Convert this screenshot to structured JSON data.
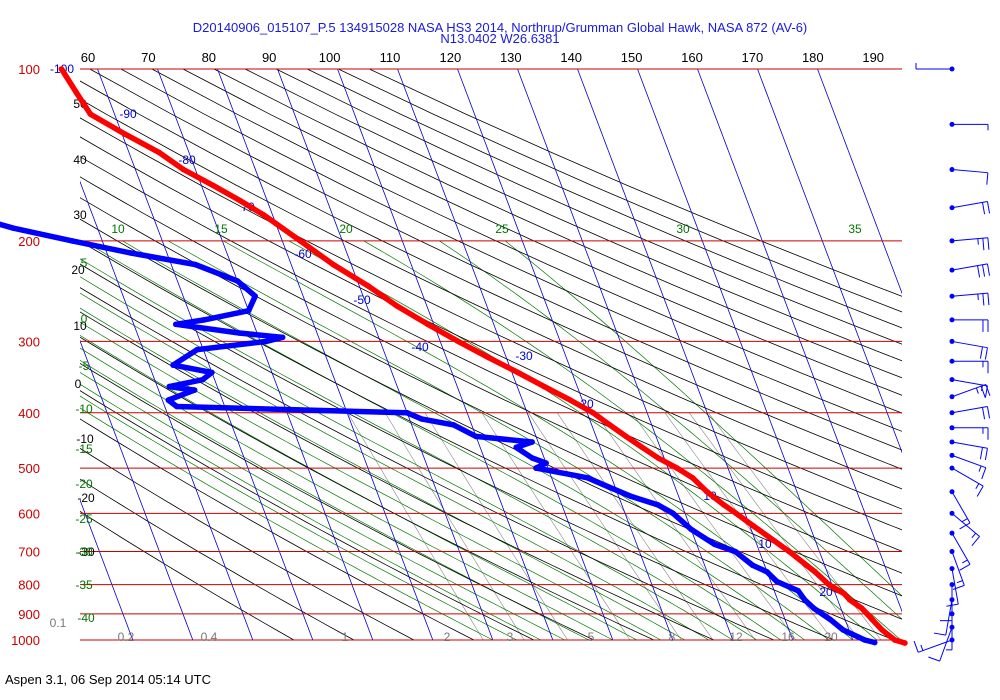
{
  "header": {
    "line1": "D20140906_015107_P.5 134915028 NASA HS3 2014, Northrup/Grumman Global Hawk, NASA 872 (AV-6)",
    "line2": "N13.0402 W26.6381"
  },
  "footer": {
    "text": "Aspen 3.1, 06 Sep 2014  05:14 UTC"
  },
  "chart_data": {
    "type": "line",
    "title": "D20140906_015107_P.5 134915028 NASA HS3 2014, Northrup/Grumman Global Hawk, NASA 872 (AV-6)",
    "subtitle": "N13.0402 W26.6381",
    "x_axis": {
      "ticks": [
        60,
        70,
        80,
        90,
        100,
        110,
        120,
        130,
        140,
        150,
        160,
        170,
        180,
        190
      ],
      "position": "top"
    },
    "y_axis": {
      "scale": "log",
      "ticks": [
        100,
        200,
        300,
        400,
        500,
        600,
        700,
        800,
        900,
        1000
      ],
      "range": [
        100,
        1000
      ]
    },
    "isotherm_labels": [
      "-100",
      "-90",
      "-80",
      "70",
      "-60",
      "-50",
      "-40",
      "-30",
      "-20",
      "10",
      "10",
      "20"
    ],
    "dry_adiabat_labels": [
      "50",
      "40",
      "30",
      "20",
      "10",
      "0",
      "-10",
      "-20",
      "-30"
    ],
    "moist_adiabat_labels_green": [
      "10",
      "15",
      "20",
      "25",
      "30",
      "35",
      "5",
      "0",
      "-5",
      "-10",
      "-15",
      "-20",
      "-25",
      "-30",
      "-35",
      "-40"
    ],
    "mixing_ratio_labels": [
      "0.1",
      "0.2",
      "0.4",
      "1",
      "2",
      "3",
      "5",
      "8",
      "12",
      "16",
      "20"
    ],
    "colors": {
      "temperature": "#ff0000",
      "dewpoint": "#0000ff",
      "isobar": "#cc0000",
      "isotherm": "#0000cc",
      "dry_adiabat": "#000000",
      "moist_adiabat": "#007700",
      "mixing_ratio": "#888888",
      "text_blue": "#1a1adc"
    },
    "series": [
      {
        "name": "Temperature",
        "color": "#ff0000",
        "points": [
          [
            100,
            -76
          ],
          [
            110,
            -75
          ],
          [
            120,
            -74
          ],
          [
            130,
            -69.5
          ],
          [
            140,
            -65
          ],
          [
            150,
            -62
          ],
          [
            160,
            -58
          ],
          [
            170,
            -54.5
          ],
          [
            180,
            -51.5
          ],
          [
            200,
            -47
          ],
          [
            220,
            -43
          ],
          [
            240,
            -38.5
          ],
          [
            260,
            -35
          ],
          [
            280,
            -31
          ],
          [
            300,
            -27
          ],
          [
            320,
            -23
          ],
          [
            340,
            -19
          ],
          [
            360,
            -15.5
          ],
          [
            380,
            -12
          ],
          [
            400,
            -9
          ],
          [
            420,
            -7
          ],
          [
            440,
            -5
          ],
          [
            460,
            -3
          ],
          [
            480,
            -1
          ],
          [
            500,
            1.5
          ],
          [
            520,
            3.5
          ],
          [
            550,
            5
          ],
          [
            580,
            7
          ],
          [
            600,
            8.5
          ],
          [
            630,
            10.5
          ],
          [
            660,
            12.5
          ],
          [
            700,
            15
          ],
          [
            740,
            17
          ],
          [
            760,
            18
          ],
          [
            800,
            19.5
          ],
          [
            830,
            21.5
          ],
          [
            850,
            22
          ],
          [
            880,
            23.5
          ],
          [
            920,
            24.5
          ],
          [
            960,
            25.5
          ],
          [
            1000,
            27
          ],
          [
            1012,
            28.5
          ]
        ]
      },
      {
        "name": "Dewpoint",
        "color": "#0000ff",
        "points": [
          [
            158,
            -120
          ],
          [
            165,
            -114
          ],
          [
            172,
            -107
          ],
          [
            180,
            -101
          ],
          [
            190,
            -94
          ],
          [
            200,
            -85
          ],
          [
            210,
            -76
          ],
          [
            220,
            -66
          ],
          [
            235,
            -60
          ],
          [
            250,
            -58
          ],
          [
            265,
            -60
          ],
          [
            275,
            -68
          ],
          [
            280,
            -73
          ],
          [
            290,
            -63
          ],
          [
            295,
            -56
          ],
          [
            300,
            -59
          ],
          [
            310,
            -71
          ],
          [
            330,
            -76
          ],
          [
            340,
            -70
          ],
          [
            350,
            -72
          ],
          [
            360,
            -78
          ],
          [
            365,
            -74
          ],
          [
            380,
            -79
          ],
          [
            390,
            -78
          ],
          [
            400,
            -40
          ],
          [
            410,
            -38
          ],
          [
            420,
            -33
          ],
          [
            440,
            -30
          ],
          [
            450,
            -21
          ],
          [
            460,
            -24
          ],
          [
            480,
            -22
          ],
          [
            490,
            -20
          ],
          [
            500,
            -22
          ],
          [
            520,
            -14
          ],
          [
            540,
            -11
          ],
          [
            560,
            -8
          ],
          [
            580,
            -4
          ],
          [
            600,
            -2
          ],
          [
            640,
            0
          ],
          [
            680,
            3
          ],
          [
            700,
            6
          ],
          [
            740,
            8
          ],
          [
            760,
            10
          ],
          [
            790,
            11
          ],
          [
            820,
            14
          ],
          [
            850,
            14.5
          ],
          [
            880,
            15.5
          ],
          [
            920,
            17.5
          ],
          [
            960,
            19
          ],
          [
            1000,
            22
          ],
          [
            1010,
            23.5
          ]
        ]
      }
    ],
    "wind_barbs": [
      {
        "p": 100,
        "speed": 5,
        "dir": 270
      },
      {
        "p": 125,
        "speed": 5,
        "dir": 90
      },
      {
        "p": 150,
        "speed": 10,
        "dir": 95
      },
      {
        "p": 175,
        "speed": 20,
        "dir": 80
      },
      {
        "p": 200,
        "speed": 25,
        "dir": 85
      },
      {
        "p": 225,
        "speed": 30,
        "dir": 80
      },
      {
        "p": 250,
        "speed": 25,
        "dir": 85
      },
      {
        "p": 275,
        "speed": 20,
        "dir": 90
      },
      {
        "p": 300,
        "speed": 20,
        "dir": 100
      },
      {
        "p": 325,
        "speed": 15,
        "dir": 90
      },
      {
        "p": 350,
        "speed": 15,
        "dir": 100
      },
      {
        "p": 375,
        "speed": 25,
        "dir": 70
      },
      {
        "p": 400,
        "speed": 20,
        "dir": 80
      },
      {
        "p": 425,
        "speed": 15,
        "dir": 90
      },
      {
        "p": 450,
        "speed": 20,
        "dir": 100
      },
      {
        "p": 475,
        "speed": 15,
        "dir": 110
      },
      {
        "p": 500,
        "speed": 15,
        "dir": 120
      },
      {
        "p": 550,
        "speed": 15,
        "dir": 150
      },
      {
        "p": 600,
        "speed": 15,
        "dir": 130
      },
      {
        "p": 650,
        "speed": 15,
        "dir": 150
      },
      {
        "p": 700,
        "speed": 15,
        "dir": 160
      },
      {
        "p": 750,
        "speed": 10,
        "dir": 170
      },
      {
        "p": 800,
        "speed": 10,
        "dir": 180
      },
      {
        "p": 850,
        "speed": 10,
        "dir": 190
      },
      {
        "p": 900,
        "speed": 5,
        "dir": 180
      },
      {
        "p": 950,
        "speed": 10,
        "dir": 200
      },
      {
        "p": 1000,
        "speed": 15,
        "dir": 250
      }
    ]
  }
}
